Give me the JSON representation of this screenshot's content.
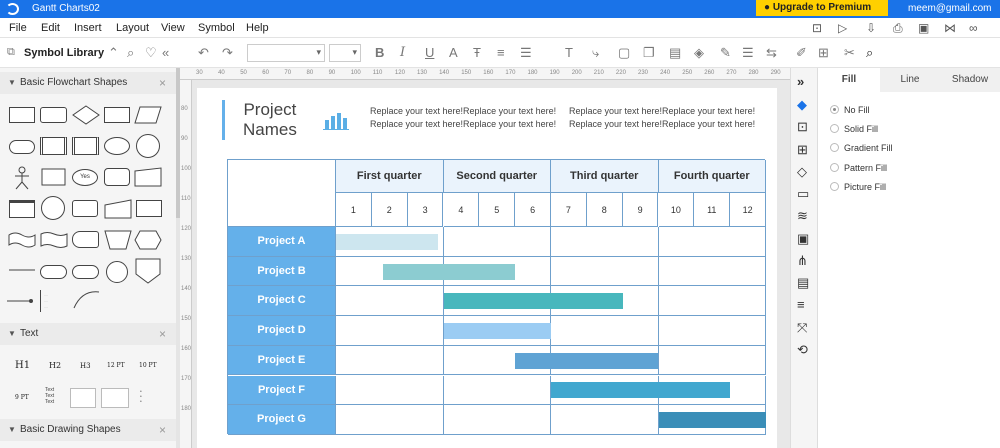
{
  "app": {
    "document_title": "Gantt Charts02",
    "upgrade_label": "Upgrade to Premium Version",
    "user_email": "meem@gmail.com"
  },
  "menu": [
    "File",
    "Edit",
    "Insert",
    "Layout",
    "View",
    "Symbol",
    "Help"
  ],
  "toolbar": {
    "symbol_library_label": "Symbol Library"
  },
  "sidebar": {
    "sections": [
      {
        "title": "Basic Flowchart Shapes"
      },
      {
        "title": "Text"
      },
      {
        "title": "Basic Drawing Shapes"
      }
    ],
    "flowchart_sample_text": "Yes",
    "text_samples": [
      "H1",
      "H2",
      "H3",
      "12 PT",
      "10 PT",
      "9 PT"
    ],
    "text_block_line": "Text"
  },
  "panel": {
    "tabs": [
      "Fill",
      "Line",
      "Shadow"
    ],
    "active_tab": "Fill",
    "fill_options": [
      "No Fill",
      "Solid Fill",
      "Gradient Fill",
      "Pattern Fill",
      "Picture Fill"
    ],
    "selected_fill": "No Fill"
  },
  "ruler": {
    "top_ticks": [
      "30",
      "40",
      "50",
      "60",
      "70",
      "80",
      "90",
      "100",
      "110",
      "120",
      "130",
      "140",
      "150",
      "160",
      "170",
      "180",
      "190",
      "200",
      "210",
      "220",
      "230",
      "240",
      "250",
      "260",
      "270",
      "280",
      "290"
    ],
    "left_ticks": [
      "80",
      "90",
      "100",
      "110",
      "120",
      "130",
      "140",
      "150",
      "160",
      "170",
      "180"
    ]
  },
  "document": {
    "title_line1": "Project",
    "title_line2": "Names",
    "placeholder_line": "Replace your text here!Replace your text here!"
  },
  "gantt": {
    "quarters": [
      "First quarter",
      "Second quarter",
      "Third quarter",
      "Fourth quarter"
    ],
    "months": [
      "1",
      "2",
      "3",
      "4",
      "5",
      "6",
      "7",
      "8",
      "9",
      "10",
      "11",
      "12"
    ],
    "tasks": [
      {
        "name": "Project A",
        "start": 0,
        "end": 2.85,
        "color": "#cde6ef"
      },
      {
        "name": "Project B",
        "start": 1.3,
        "end": 5.0,
        "color": "#8cccd1"
      },
      {
        "name": "Project C",
        "start": 3.0,
        "end": 8.0,
        "color": "#48b7bd"
      },
      {
        "name": "Project D",
        "start": 3.0,
        "end": 6.0,
        "color": "#9bccf3"
      },
      {
        "name": "Project E",
        "start": 5.0,
        "end": 9.0,
        "color": "#5fa3d4"
      },
      {
        "name": "Project F",
        "start": 6.0,
        "end": 11.0,
        "color": "#41a7cf"
      },
      {
        "name": "Project G",
        "start": 9.0,
        "end": 12.0,
        "color": "#3a8eb8"
      }
    ]
  },
  "colors": {
    "accent": "#1a73e8",
    "header_fill": "#eaf3fc",
    "row_label_fill": "#64b0ea",
    "grid": "#6fa0cc",
    "premium": "#ffd000"
  }
}
